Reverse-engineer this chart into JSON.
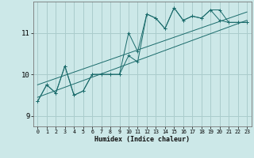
{
  "xlabel": "Humidex (Indice chaleur)",
  "ylabel": "",
  "bg_color": "#cce8e8",
  "grid_color": "#aacccc",
  "line_color": "#1a6b6b",
  "xlim": [
    -0.5,
    23.5
  ],
  "ylim": [
    8.75,
    11.75
  ],
  "yticks": [
    9,
    10,
    11
  ],
  "xticks": [
    0,
    1,
    2,
    3,
    4,
    5,
    6,
    7,
    8,
    9,
    10,
    11,
    12,
    13,
    14,
    15,
    16,
    17,
    18,
    19,
    20,
    21,
    22,
    23
  ],
  "series1_x": [
    0,
    1,
    2,
    3,
    4,
    5,
    6,
    7,
    8,
    9,
    10,
    11,
    12,
    13,
    14,
    15,
    16,
    17,
    18,
    19,
    20,
    21,
    22,
    23
  ],
  "series1_y": [
    9.35,
    9.75,
    9.55,
    10.2,
    9.5,
    9.6,
    10.0,
    10.0,
    10.0,
    10.0,
    10.45,
    10.3,
    11.45,
    11.35,
    11.1,
    11.6,
    11.3,
    11.4,
    11.35,
    11.55,
    11.55,
    11.25,
    11.25,
    11.25
  ],
  "series2_x": [
    0,
    1,
    2,
    3,
    4,
    5,
    6,
    7,
    8,
    9,
    10,
    11,
    12,
    13,
    14,
    15,
    16,
    17,
    18,
    19,
    20,
    21,
    22,
    23
  ],
  "series2_y": [
    9.35,
    9.75,
    9.55,
    10.2,
    9.5,
    9.6,
    10.0,
    10.0,
    10.0,
    10.0,
    11.0,
    10.55,
    11.45,
    11.35,
    11.1,
    11.6,
    11.3,
    11.4,
    11.35,
    11.55,
    11.3,
    11.25,
    11.25,
    11.25
  ],
  "trend1_x": [
    0,
    23
  ],
  "trend1_y": [
    9.45,
    11.3
  ],
  "trend2_x": [
    0,
    23
  ],
  "trend2_y": [
    9.75,
    11.5
  ]
}
